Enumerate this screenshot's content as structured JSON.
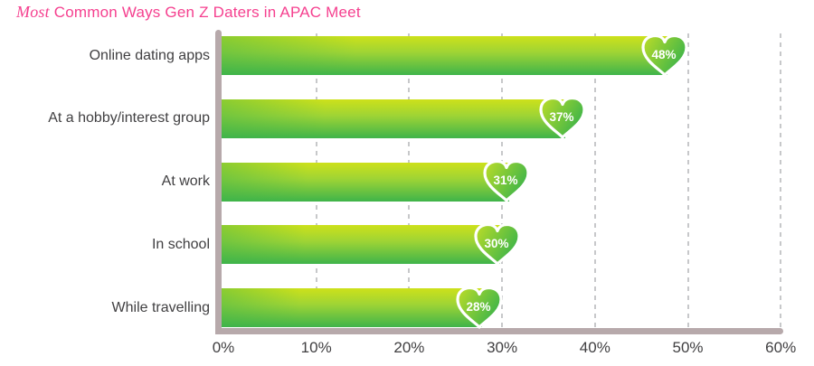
{
  "title": {
    "italic": "Most",
    "rest": "Common Ways Gen Z Daters in APAC Meet"
  },
  "chart_data": {
    "type": "bar",
    "orientation": "horizontal",
    "title": "Most Common Ways Gen Z Daters in APAC Meet",
    "categories": [
      "Online dating apps",
      "At a hobby/interest group",
      "At work",
      "In school",
      "While travelling"
    ],
    "values": [
      48,
      37,
      31,
      30,
      28
    ],
    "value_labels": [
      "48%",
      "37%",
      "31%",
      "30%",
      "28%"
    ],
    "x_ticks": [
      "0%",
      "10%",
      "20%",
      "30%",
      "40%",
      "50%",
      "60%"
    ],
    "xlim": [
      0,
      60
    ],
    "xlabel": "",
    "ylabel": "",
    "grid": "vertical-dashed",
    "legend": "none",
    "marker": "heart-badge",
    "colors": {
      "title_pink": "#f5408f",
      "bar_gradient_top": "#cde11a",
      "bar_gradient_bottom": "#3fb44a",
      "heart_fill_light": "#bedd27",
      "heart_fill_dark": "#3cb44a",
      "heart_stroke": "#ffffff",
      "axis": "#b7a9ab",
      "gridline": "#c7c8ca",
      "text": "#414042"
    }
  }
}
